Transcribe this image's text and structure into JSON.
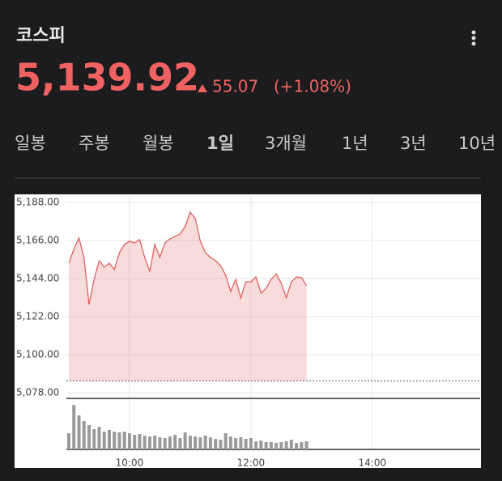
{
  "header": {
    "title": "코스피",
    "price": "5,139.92",
    "change": "55.07",
    "change_pct": "(+1.08%)"
  },
  "tabs": [
    "일봉",
    "주봉",
    "월봉",
    "1일",
    "3개월",
    "1년",
    "3년",
    "10년"
  ],
  "selected_tab": 3,
  "chart_data": {
    "type": "line",
    "x": [
      "09:00",
      "09:05",
      "09:10",
      "09:15",
      "09:20",
      "09:25",
      "09:30",
      "09:35",
      "09:40",
      "09:45",
      "09:50",
      "09:55",
      "10:00",
      "10:05",
      "10:10",
      "10:15",
      "10:20",
      "10:25",
      "10:30",
      "10:35",
      "10:40",
      "10:45",
      "10:50",
      "10:55",
      "11:00",
      "11:05",
      "11:10",
      "11:15",
      "11:20",
      "11:25",
      "11:30",
      "11:35",
      "11:40",
      "11:45",
      "11:50",
      "11:55",
      "12:00",
      "12:05",
      "12:10",
      "12:15",
      "12:20",
      "12:25",
      "12:30",
      "12:35",
      "12:40",
      "12:45",
      "12:50",
      "12:55"
    ],
    "series": [
      {
        "color": "#e06060",
        "values": [
          5152.9,
          5160.9,
          5167.4,
          5156.2,
          5129.0,
          5143.5,
          5154.3,
          5150.6,
          5152.9,
          5149.2,
          5159.0,
          5163.7,
          5165.6,
          5164.6,
          5166.5,
          5156.2,
          5148.2,
          5163.7,
          5156.2,
          5164.6,
          5167.0,
          5168.4,
          5169.8,
          5174.0,
          5182.4,
          5178.7,
          5165.6,
          5159.0,
          5156.2,
          5154.3,
          5151.5,
          5145.9,
          5136.5,
          5143.5,
          5132.8,
          5142.1,
          5142.1,
          5145.0,
          5135.6,
          5138.4,
          5143.5,
          5146.8,
          5141.2,
          5132.8,
          5142.1,
          5145.0,
          5144.5,
          5139.9
        ]
      }
    ],
    "reference_line": 5084.85,
    "xlim": [
      "09:00",
      "15:45"
    ],
    "xticks": [
      "10:00",
      "12:00",
      "14:00"
    ],
    "ylim": [
      5078,
      5188
    ],
    "yticks": [
      {
        "value": 5188,
        "label": "5,188.00"
      },
      {
        "value": 5166,
        "label": "5,166.00"
      },
      {
        "value": 5144,
        "label": "5,144.00"
      },
      {
        "value": 5122,
        "label": "5,122.00"
      },
      {
        "value": 5100,
        "label": "5,100.00"
      },
      {
        "value": 5078,
        "label": "5,078.00"
      }
    ],
    "grid": true,
    "volume": {
      "color": "#9a9a9a",
      "ylim": [
        0,
        60
      ],
      "values": [
        20,
        55,
        42,
        35,
        30,
        25,
        28,
        22,
        24,
        22,
        21,
        22,
        20,
        18,
        19,
        17,
        16,
        17,
        15,
        14,
        16,
        18,
        14,
        21,
        17,
        16,
        15,
        17,
        15,
        13,
        12,
        20,
        16,
        14,
        15,
        13,
        14,
        10,
        11,
        9,
        9,
        8,
        9,
        10,
        12,
        8,
        9,
        10
      ]
    }
  }
}
